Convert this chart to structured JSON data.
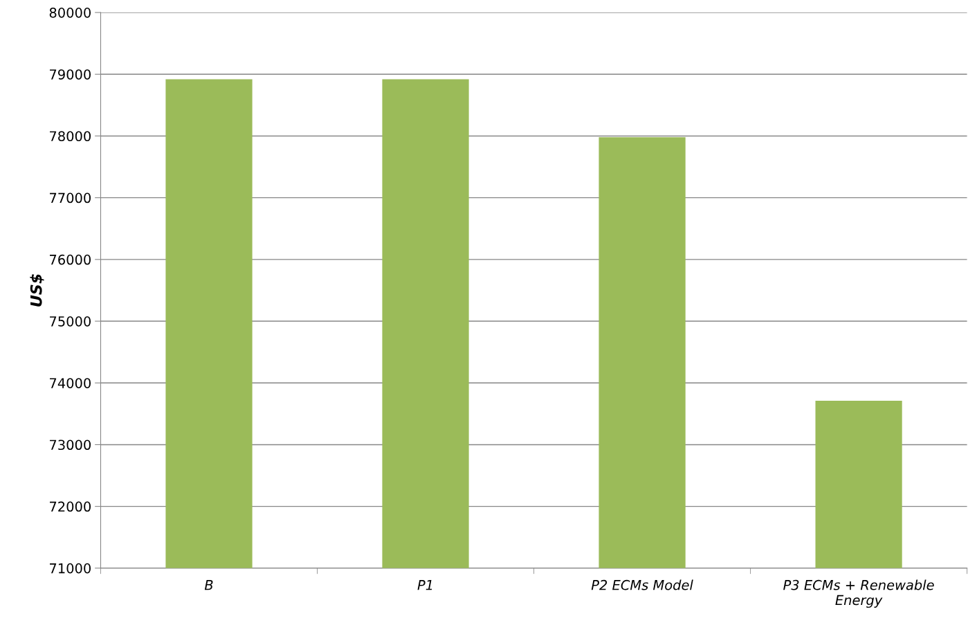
{
  "chart_data": {
    "type": "bar",
    "ylabel": "US$",
    "categories": [
      "B",
      "P1",
      "P2 ECMs Model",
      "P3 ECMs + Renewable\nEnergy"
    ],
    "values": [
      78920,
      78920,
      77980,
      73710
    ],
    "color": "#9bbb59",
    "ylim": [
      71000,
      80000
    ],
    "yticks": [
      71000,
      72000,
      73000,
      74000,
      75000,
      76000,
      77000,
      78000,
      79000,
      80000
    ],
    "grid": "y",
    "legend": false
  }
}
